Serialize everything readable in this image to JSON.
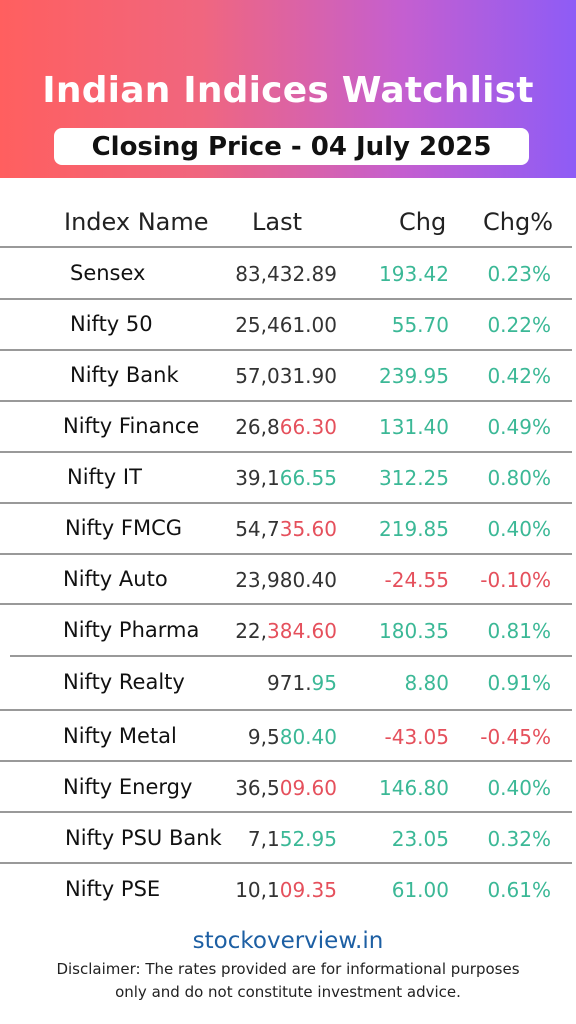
{
  "header": {
    "title": "Indian Indices Watchlist",
    "subtitle": "Closing Price - 04 July 2025"
  },
  "table": {
    "columns": [
      "Index Name",
      "Last",
      "Chg",
      "Chg%"
    ],
    "rows": [
      {
        "name": "Sensex",
        "last_a": "83,432.89",
        "last_b": "",
        "last_b_dir": "pos",
        "chg": "193.42",
        "pct": "0.23%",
        "dir": "pos"
      },
      {
        "name": "Nifty 50",
        "last_a": "25,461.00",
        "last_b": "",
        "last_b_dir": "pos",
        "chg": "55.70",
        "pct": "0.22%",
        "dir": "pos"
      },
      {
        "name": "Nifty Bank",
        "last_a": "57,031.90",
        "last_b": "",
        "last_b_dir": "pos",
        "chg": "239.95",
        "pct": "0.42%",
        "dir": "pos"
      },
      {
        "name": "Nifty Finance",
        "last_a": "26,8",
        "last_b": "66.30",
        "last_b_dir": "neg",
        "chg": "131.40",
        "pct": "0.49%",
        "dir": "pos"
      },
      {
        "name": "Nifty IT",
        "last_a": "39,1",
        "last_b": "66.55",
        "last_b_dir": "pos",
        "chg": "312.25",
        "pct": "0.80%",
        "dir": "pos"
      },
      {
        "name": "Nifty FMCG",
        "last_a": "54,7",
        "last_b": "35.60",
        "last_b_dir": "neg",
        "chg": "219.85",
        "pct": "0.40%",
        "dir": "pos"
      },
      {
        "name": "Nifty Auto",
        "last_a": "23,980.40",
        "last_b": "",
        "last_b_dir": "pos",
        "chg": "-24.55",
        "pct": "-0.10%",
        "dir": "neg"
      },
      {
        "name": "Nifty Pharma",
        "last_a": "22,",
        "last_b": "384.60",
        "last_b_dir": "neg",
        "chg": "180.35",
        "pct": "0.81%",
        "dir": "pos"
      },
      {
        "name": "Nifty Realty",
        "last_a": "971.",
        "last_b": "95",
        "last_b_dir": "pos",
        "chg": "8.80",
        "pct": "0.91%",
        "dir": "pos"
      },
      {
        "name": "Nifty Metal",
        "last_a": "9,5",
        "last_b": "80.40",
        "last_b_dir": "pos",
        "chg": "-43.05",
        "pct": "-0.45%",
        "dir": "neg"
      },
      {
        "name": "Nifty Energy",
        "last_a": "36,5",
        "last_b": "09.60",
        "last_b_dir": "neg",
        "chg": "146.80",
        "pct": "0.40%",
        "dir": "pos"
      },
      {
        "name": "Nifty PSU Bank",
        "last_a": "7,1",
        "last_b": "52.95",
        "last_b_dir": "pos",
        "chg": "23.05",
        "pct": "0.32%",
        "dir": "pos"
      },
      {
        "name": "Nifty PSE",
        "last_a": "10,1",
        "last_b": "09.35",
        "last_b_dir": "neg",
        "chg": "61.00",
        "pct": "0.61%",
        "dir": "pos"
      }
    ]
  },
  "footer": {
    "site": "stockoverview.in",
    "disclaimer": "Disclaimer: The rates provided are for informational purposes only and do not constitute investment advice."
  },
  "colors": {
    "positive": "#3bb896",
    "negative": "#e5505c",
    "link": "#1d5fa3"
  }
}
